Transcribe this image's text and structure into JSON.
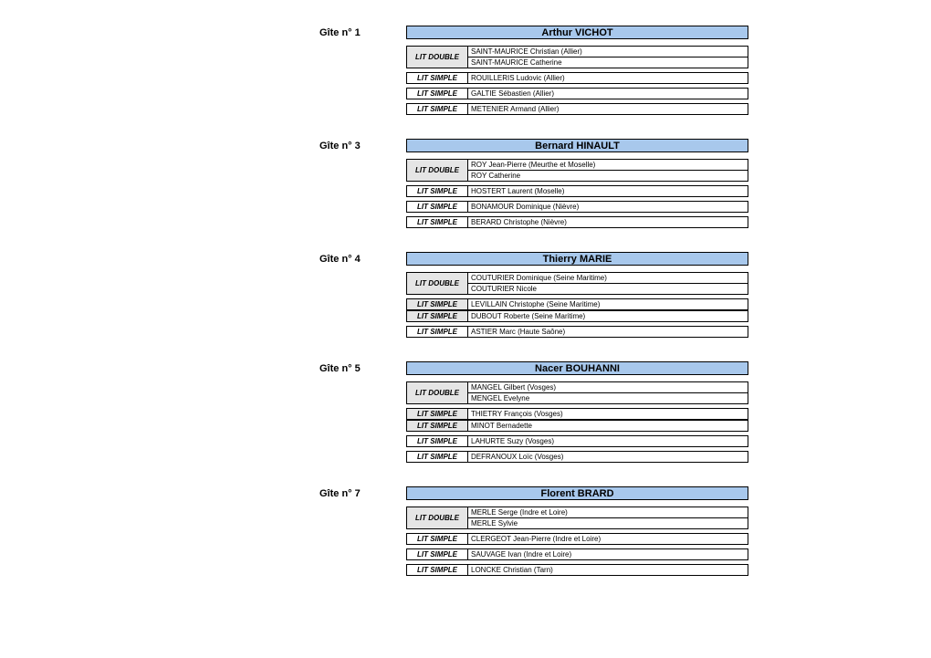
{
  "colors": {
    "header_bg": "#a8c8ec",
    "grey_bg": "#e5e5e5",
    "border": "#000000"
  },
  "bed_labels": {
    "double": "LIT DOUBLE",
    "single": "LIT SIMPLE"
  },
  "gites": [
    {
      "label": "Gîte n° 1",
      "title": "Arthur VICHOT",
      "groups": [
        {
          "type": "double",
          "grey": true,
          "gap_after": true,
          "persons": [
            "SAINT-MAURICE Christian (Allier)",
            "SAINT-MAURICE Catherine"
          ]
        },
        {
          "type": "single",
          "grey": false,
          "gap_after": true,
          "persons": [
            "ROUILLERIS Ludovic (Allier)"
          ]
        },
        {
          "type": "single",
          "grey": false,
          "gap_after": true,
          "persons": [
            "GALTIE Sébastien (Allier)"
          ]
        },
        {
          "type": "single",
          "grey": false,
          "gap_after": false,
          "persons": [
            "METENIER  Armand (Allier)"
          ]
        }
      ]
    },
    {
      "label": "Gîte n° 3",
      "title": "Bernard HINAULT",
      "groups": [
        {
          "type": "double",
          "grey": true,
          "gap_after": true,
          "persons": [
            "ROY Jean-Pierre (Meurthe et Moselle)",
            "ROY Catherine"
          ]
        },
        {
          "type": "single",
          "grey": false,
          "gap_after": true,
          "persons": [
            "HOSTERT Laurent (Moselle)"
          ]
        },
        {
          "type": "single",
          "grey": false,
          "gap_after": true,
          "persons": [
            "BONAMOUR Dominique (Nièvre)"
          ]
        },
        {
          "type": "single",
          "grey": false,
          "gap_after": false,
          "persons": [
            "BERARD Christophe (Nièvre)"
          ]
        }
      ]
    },
    {
      "label": "Gîte n° 4",
      "title": "Thierry MARIE",
      "groups": [
        {
          "type": "double",
          "grey": true,
          "gap_after": true,
          "persons": [
            "COUTURIER Dominique (Seine Maritime)",
            "COUTURIER Nicole"
          ]
        },
        {
          "type": "single",
          "grey": true,
          "gap_after": false,
          "persons": [
            "LEVILLAIN Christophe (Seine Maritime)"
          ]
        },
        {
          "type": "single",
          "grey": true,
          "gap_after": true,
          "persons": [
            "DUBOUT Roberte (Seine Maritime)"
          ]
        },
        {
          "type": "single",
          "grey": false,
          "gap_after": false,
          "persons": [
            "ASTIER Marc (Haute Saône)"
          ]
        }
      ]
    },
    {
      "label": "Gîte n° 5",
      "title": "Nacer BOUHANNI",
      "groups": [
        {
          "type": "double",
          "grey": true,
          "gap_after": true,
          "persons": [
            "MANGEL Gilbert (Vosges)",
            "MENGEL Evelyne"
          ]
        },
        {
          "type": "single",
          "grey": true,
          "gap_after": false,
          "persons": [
            "THIETRY François (Vosges)"
          ]
        },
        {
          "type": "single",
          "grey": true,
          "gap_after": true,
          "persons": [
            "MINOT Bernadette"
          ]
        },
        {
          "type": "single",
          "grey": false,
          "gap_after": true,
          "persons": [
            "LAHURTE Suzy (Vosges)"
          ]
        },
        {
          "type": "single",
          "grey": false,
          "gap_after": false,
          "persons": [
            "DEFRANOUX Loïc (Vosges)"
          ]
        }
      ]
    },
    {
      "label": "Gîte n° 7",
      "title": "Florent BRARD",
      "groups": [
        {
          "type": "double",
          "grey": true,
          "gap_after": true,
          "persons": [
            "MERLE Serge (Indre et Loire)",
            "MERLE Sylvie"
          ]
        },
        {
          "type": "single",
          "grey": false,
          "gap_after": true,
          "persons": [
            "CLERGEOT Jean-Pierre (Indre et Loire)"
          ]
        },
        {
          "type": "single",
          "grey": false,
          "gap_after": true,
          "persons": [
            "SAUVAGE Ivan (Indre et Loire)"
          ]
        },
        {
          "type": "single",
          "grey": false,
          "gap_after": false,
          "persons": [
            "LONCKE Christian (Tarn)"
          ]
        }
      ]
    }
  ]
}
